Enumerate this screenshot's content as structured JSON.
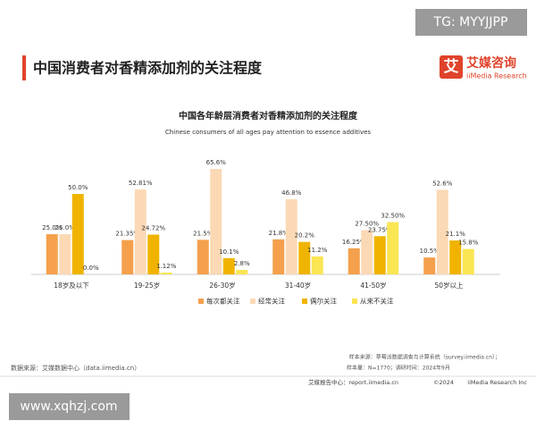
{
  "watermark_top": "TG: MYYJJPP",
  "header": {
    "title": "中国消费者对香精添加剂的关注程度",
    "logo_cn": "艾媒咨询",
    "logo_en": "iiMedia Research",
    "logo_icon": "艾"
  },
  "chart_data": {
    "type": "bar",
    "title": "中国各年龄层消费者对香精添加剂的关注程度",
    "subtitle": "Chinese consumers of all ages pay attention to essence additives",
    "categories": [
      "18岁及以下",
      "19-25岁",
      "26-30岁",
      "31-40岁",
      "41-50岁",
      "50岁以上"
    ],
    "series": [
      {
        "name": "每次都关注",
        "color": "#f4a04c",
        "values": [
          25.0,
          21.35,
          21.5,
          21.8,
          16.25,
          10.5
        ],
        "value_labels": [
          "25.0%",
          "21.35%",
          "21.5%",
          "21.8%",
          "16.25%",
          "10.5%"
        ]
      },
      {
        "name": "经常关注",
        "color": "#fbd9b5",
        "values": [
          25.0,
          52.81,
          65.6,
          46.8,
          27.5,
          52.6
        ],
        "value_labels": [
          "25.0%",
          "52.81%",
          "65.6%",
          "46.8%",
          "27.50%",
          "52.6%"
        ]
      },
      {
        "name": "偶尔关注",
        "color": "#f0b400",
        "values": [
          50.0,
          24.72,
          10.1,
          20.2,
          23.75,
          21.1
        ],
        "value_labels": [
          "50.0%",
          "24.72%",
          "10.1%",
          "20.2%",
          "23.75%",
          "21.1%"
        ]
      },
      {
        "name": "从来不关注",
        "color": "#fae553",
        "values": [
          0.0,
          1.12,
          2.8,
          11.2,
          32.5,
          15.8
        ],
        "value_labels": [
          "0.0%",
          "1.12%",
          "2.8%",
          "11.2%",
          "32.50%",
          "15.8%"
        ]
      }
    ]
  },
  "notes": {
    "sample_source": "样本来源：草莓派数据调查与计算系统（survey.iimedia.cn）；",
    "sample_size": "样本量：N=1770；调研时间：2024年9月",
    "data_source": "数据来源：艾媒数据中心（data.iimedia.cn）"
  },
  "footer": {
    "center": "艾媒报告中心：report.iimedia.cn",
    "copyright": "©2024",
    "company": "iiMedia Research Inc"
  },
  "watermark_bottom": "www.xqhzj.com"
}
